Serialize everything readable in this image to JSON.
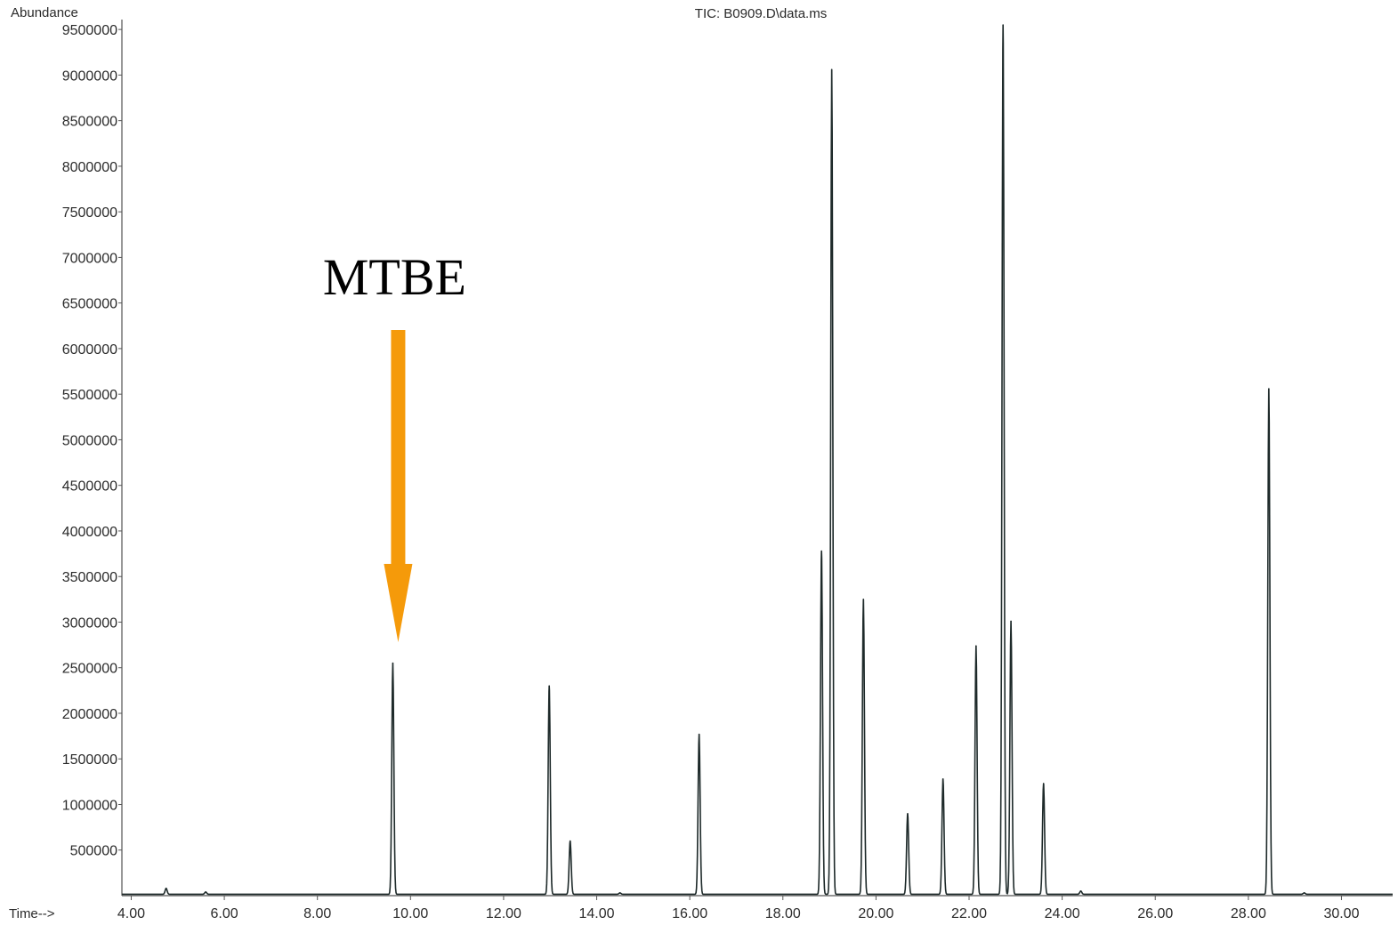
{
  "chart_data": {
    "type": "line",
    "title": "TIC: B0909.D\\data.ms",
    "ylabel": "Abundance",
    "xlabel": "Time-->",
    "xlim": [
      3.8,
      31.1
    ],
    "ylim": [
      0,
      9550000
    ],
    "x_ticks": [
      "4.00",
      "6.00",
      "8.00",
      "10.00",
      "12.00",
      "14.00",
      "16.00",
      "18.00",
      "20.00",
      "22.00",
      "24.00",
      "26.00",
      "28.00",
      "30.00"
    ],
    "y_ticks": [
      "500000",
      "1000000",
      "1500000",
      "2000000",
      "2500000",
      "3000000",
      "3500000",
      "4000000",
      "4500000",
      "5000000",
      "5500000",
      "6000000",
      "6500000",
      "7000000",
      "7500000",
      "8000000",
      "8500000",
      "9000000",
      "9500000"
    ],
    "baseline": 15000,
    "series": [
      {
        "peaks": [
          {
            "x": 4.75,
            "y": 80000
          },
          {
            "x": 5.6,
            "y": 40000
          },
          {
            "x": 9.62,
            "y": 2550000
          },
          {
            "x": 12.98,
            "y": 2300000
          },
          {
            "x": 13.43,
            "y": 600000
          },
          {
            "x": 14.5,
            "y": 30000
          },
          {
            "x": 16.2,
            "y": 1770000
          },
          {
            "x": 18.83,
            "y": 3780000
          },
          {
            "x": 19.05,
            "y": 9060000
          },
          {
            "x": 19.73,
            "y": 3250000
          },
          {
            "x": 20.68,
            "y": 900000
          },
          {
            "x": 21.44,
            "y": 1280000
          },
          {
            "x": 22.15,
            "y": 2740000
          },
          {
            "x": 22.73,
            "y": 9550000
          },
          {
            "x": 22.9,
            "y": 3010000
          },
          {
            "x": 23.6,
            "y": 1230000
          },
          {
            "x": 24.4,
            "y": 50000
          },
          {
            "x": 28.44,
            "y": 5560000
          },
          {
            "x": 29.2,
            "y": 30000
          }
        ]
      }
    ],
    "annotations": [
      {
        "text": "MTBE",
        "x": 9.62,
        "color": "#f59a0a"
      }
    ]
  }
}
